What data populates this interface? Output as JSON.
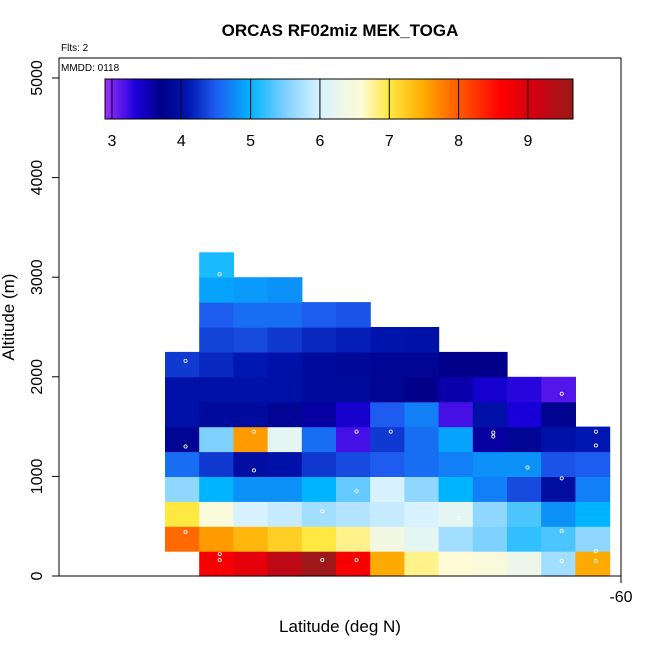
{
  "chart_data": {
    "type": "heatmap",
    "title": "ORCAS RF02miz MEK_TOGA",
    "xlabel": "Latitude (deg N)",
    "ylabel": "Altitude (m)",
    "notes": {
      "flights": "Flts: 2",
      "date": "MMDD: 0118"
    },
    "x_tick_labels": [
      "-60"
    ],
    "y_ticks": [
      0,
      1000,
      2000,
      3000,
      4000,
      5000
    ],
    "y_tick_labels": [
      "0",
      "1000",
      "2000",
      "3000",
      "4000",
      "5000"
    ],
    "ylim": [
      0,
      5200
    ],
    "colorbar": {
      "range": [
        2.9,
        9.65
      ],
      "ticks": [
        3,
        4,
        5,
        6,
        7,
        8,
        9
      ],
      "tick_labels": [
        "3",
        "4",
        "5",
        "6",
        "7",
        "8",
        "9"
      ],
      "stops": [
        {
          "v": 2.9,
          "c": "#9a30ff"
        },
        {
          "v": 3.35,
          "c": "#1a00d8"
        },
        {
          "v": 3.7,
          "c": "#00008a"
        },
        {
          "v": 4.1,
          "c": "#0016b0"
        },
        {
          "v": 4.5,
          "c": "#1e5cf0"
        },
        {
          "v": 5.0,
          "c": "#00b4ff"
        },
        {
          "v": 5.5,
          "c": "#7ed0ff"
        },
        {
          "v": 6.0,
          "c": "#d8f2ff"
        },
        {
          "v": 6.6,
          "c": "#fffbd4"
        },
        {
          "v": 7.0,
          "c": "#ffe840"
        },
        {
          "v": 7.5,
          "c": "#ffaa00"
        },
        {
          "v": 8.0,
          "c": "#ff5a00"
        },
        {
          "v": 8.6,
          "c": "#ff0000"
        },
        {
          "v": 9.1,
          "c": "#d00010"
        },
        {
          "v": 9.65,
          "c": "#9a1a1a"
        }
      ]
    },
    "altitude_bin_edges": [
      0,
      250,
      500,
      750,
      1000,
      1250,
      1500,
      1750,
      2000,
      2250,
      2500,
      2750,
      3000,
      3250
    ],
    "column_count": 13,
    "cells": [
      {
        "col": 1,
        "row": 0,
        "v": 8.7
      },
      {
        "col": 2,
        "row": 0,
        "v": 8.9
      },
      {
        "col": 3,
        "row": 0,
        "v": 9.3
      },
      {
        "col": 4,
        "row": 0,
        "v": 9.6
      },
      {
        "col": 5,
        "row": 0,
        "v": 8.7
      },
      {
        "col": 6,
        "row": 0,
        "v": 7.5
      },
      {
        "col": 7,
        "row": 0,
        "v": 6.8
      },
      {
        "col": 8,
        "row": 0,
        "v": 6.6
      },
      {
        "col": 9,
        "row": 0,
        "v": 6.5
      },
      {
        "col": 10,
        "row": 0,
        "v": 6.3
      },
      {
        "col": 11,
        "row": 0,
        "v": 5.7
      },
      {
        "col": 12,
        "row": 0,
        "v": 7.5
      },
      {
        "col": 0,
        "row": 1,
        "v": 7.9
      },
      {
        "col": 1,
        "row": 1,
        "v": 7.6
      },
      {
        "col": 2,
        "row": 1,
        "v": 7.4
      },
      {
        "col": 3,
        "row": 1,
        "v": 7.2
      },
      {
        "col": 4,
        "row": 1,
        "v": 7.0
      },
      {
        "col": 5,
        "row": 1,
        "v": 6.8
      },
      {
        "col": 6,
        "row": 1,
        "v": 6.4
      },
      {
        "col": 7,
        "row": 1,
        "v": 6.2
      },
      {
        "col": 8,
        "row": 1,
        "v": 5.7
      },
      {
        "col": 9,
        "row": 1,
        "v": 5.5
      },
      {
        "col": 10,
        "row": 1,
        "v": 5.2
      },
      {
        "col": 11,
        "row": 1,
        "v": 5.3
      },
      {
        "col": 12,
        "row": 1,
        "v": 5.6
      },
      {
        "col": 0,
        "row": 2,
        "v": 7.0
      },
      {
        "col": 1,
        "row": 2,
        "v": 6.5
      },
      {
        "col": 2,
        "row": 2,
        "v": 6.0
      },
      {
        "col": 3,
        "row": 2,
        "v": 5.9
      },
      {
        "col": 4,
        "row": 2,
        "v": 5.7
      },
      {
        "col": 5,
        "row": 2,
        "v": 5.8
      },
      {
        "col": 6,
        "row": 2,
        "v": 5.9
      },
      {
        "col": 7,
        "row": 2,
        "v": 6.0
      },
      {
        "col": 8,
        "row": 2,
        "v": 6.2
      },
      {
        "col": 9,
        "row": 2,
        "v": 5.6
      },
      {
        "col": 10,
        "row": 2,
        "v": 5.3
      },
      {
        "col": 11,
        "row": 2,
        "v": 4.8
      },
      {
        "col": 12,
        "row": 2,
        "v": 5.0
      },
      {
        "col": 0,
        "row": 3,
        "v": 5.6
      },
      {
        "col": 1,
        "row": 3,
        "v": 5.0
      },
      {
        "col": 2,
        "row": 3,
        "v": 4.8
      },
      {
        "col": 3,
        "row": 3,
        "v": 4.8
      },
      {
        "col": 4,
        "row": 3,
        "v": 5.0
      },
      {
        "col": 5,
        "row": 3,
        "v": 5.4
      },
      {
        "col": 6,
        "row": 3,
        "v": 6.0
      },
      {
        "col": 7,
        "row": 3,
        "v": 5.6
      },
      {
        "col": 8,
        "row": 3,
        "v": 5.0
      },
      {
        "col": 9,
        "row": 3,
        "v": 4.7
      },
      {
        "col": 10,
        "row": 3,
        "v": 4.4
      },
      {
        "col": 11,
        "row": 3,
        "v": 3.95
      },
      {
        "col": 12,
        "row": 3,
        "v": 4.7
      },
      {
        "col": 0,
        "row": 4,
        "v": 4.6
      },
      {
        "col": 1,
        "row": 4,
        "v": 4.3
      },
      {
        "col": 2,
        "row": 4,
        "v": 3.95
      },
      {
        "col": 3,
        "row": 4,
        "v": 4.0
      },
      {
        "col": 4,
        "row": 4,
        "v": 4.3
      },
      {
        "col": 5,
        "row": 4,
        "v": 4.4
      },
      {
        "col": 6,
        "row": 4,
        "v": 4.5
      },
      {
        "col": 7,
        "row": 4,
        "v": 4.6
      },
      {
        "col": 8,
        "row": 4,
        "v": 4.7
      },
      {
        "col": 9,
        "row": 4,
        "v": 4.8
      },
      {
        "col": 10,
        "row": 4,
        "v": 4.8
      },
      {
        "col": 11,
        "row": 4,
        "v": 4.45
      },
      {
        "col": 12,
        "row": 4,
        "v": 4.5
      },
      {
        "col": 0,
        "row": 5,
        "v": 3.8
      },
      {
        "col": 1,
        "row": 5,
        "v": 5.5
      },
      {
        "col": 2,
        "row": 5,
        "v": 7.6
      },
      {
        "col": 3,
        "row": 5,
        "v": 6.2
      },
      {
        "col": 4,
        "row": 5,
        "v": 4.6
      },
      {
        "col": 5,
        "row": 5,
        "v": 3.2
      },
      {
        "col": 6,
        "row": 5,
        "v": 4.3
      },
      {
        "col": 7,
        "row": 5,
        "v": 4.6
      },
      {
        "col": 8,
        "row": 5,
        "v": 4.9
      },
      {
        "col": 9,
        "row": 5,
        "v": 3.6
      },
      {
        "col": 10,
        "row": 5,
        "v": 3.8
      },
      {
        "col": 11,
        "row": 5,
        "v": 4.0
      },
      {
        "col": 12,
        "row": 5,
        "v": 4.1
      },
      {
        "col": 0,
        "row": 6,
        "v": 4.0
      },
      {
        "col": 1,
        "row": 6,
        "v": 3.9
      },
      {
        "col": 2,
        "row": 6,
        "v": 3.9
      },
      {
        "col": 3,
        "row": 6,
        "v": 3.8
      },
      {
        "col": 4,
        "row": 6,
        "v": 3.6
      },
      {
        "col": 5,
        "row": 6,
        "v": 3.4
      },
      {
        "col": 6,
        "row": 6,
        "v": 4.5
      },
      {
        "col": 7,
        "row": 6,
        "v": 4.7
      },
      {
        "col": 8,
        "row": 6,
        "v": 3.2
      },
      {
        "col": 9,
        "row": 6,
        "v": 4.0
      },
      {
        "col": 10,
        "row": 6,
        "v": 3.35
      },
      {
        "col": 11,
        "row": 6,
        "v": 3.75
      },
      {
        "col": 0,
        "row": 7,
        "v": 4.0
      },
      {
        "col": 1,
        "row": 7,
        "v": 4.0
      },
      {
        "col": 2,
        "row": 7,
        "v": 4.0
      },
      {
        "col": 3,
        "row": 7,
        "v": 4.0
      },
      {
        "col": 4,
        "row": 7,
        "v": 3.9
      },
      {
        "col": 5,
        "row": 7,
        "v": 3.9
      },
      {
        "col": 6,
        "row": 7,
        "v": 3.8
      },
      {
        "col": 7,
        "row": 7,
        "v": 3.7
      },
      {
        "col": 8,
        "row": 7,
        "v": 3.55
      },
      {
        "col": 9,
        "row": 7,
        "v": 3.4
      },
      {
        "col": 10,
        "row": 7,
        "v": 3.3
      },
      {
        "col": 11,
        "row": 7,
        "v": 3.15
      },
      {
        "col": 0,
        "row": 8,
        "v": 4.3
      },
      {
        "col": 1,
        "row": 8,
        "v": 4.2
      },
      {
        "col": 2,
        "row": 8,
        "v": 4.1
      },
      {
        "col": 3,
        "row": 8,
        "v": 4.0
      },
      {
        "col": 4,
        "row": 8,
        "v": 3.9
      },
      {
        "col": 5,
        "row": 8,
        "v": 3.85
      },
      {
        "col": 6,
        "row": 8,
        "v": 3.8
      },
      {
        "col": 7,
        "row": 8,
        "v": 3.8
      },
      {
        "col": 8,
        "row": 8,
        "v": 3.7
      },
      {
        "col": 9,
        "row": 8,
        "v": 3.7
      },
      {
        "col": 1,
        "row": 9,
        "v": 4.35
      },
      {
        "col": 2,
        "row": 9,
        "v": 4.4
      },
      {
        "col": 3,
        "row": 9,
        "v": 4.3
      },
      {
        "col": 4,
        "row": 9,
        "v": 4.2
      },
      {
        "col": 5,
        "row": 9,
        "v": 4.15
      },
      {
        "col": 6,
        "row": 9,
        "v": 4.05
      },
      {
        "col": 7,
        "row": 9,
        "v": 4.0
      },
      {
        "col": 1,
        "row": 10,
        "v": 4.5
      },
      {
        "col": 2,
        "row": 10,
        "v": 4.6
      },
      {
        "col": 3,
        "row": 10,
        "v": 4.6
      },
      {
        "col": 4,
        "row": 10,
        "v": 4.5
      },
      {
        "col": 5,
        "row": 10,
        "v": 4.45
      },
      {
        "col": 1,
        "row": 11,
        "v": 4.9
      },
      {
        "col": 2,
        "row": 11,
        "v": 4.85
      },
      {
        "col": 3,
        "row": 11,
        "v": 4.8
      },
      {
        "col": 1,
        "row": 12,
        "v": 5.1
      }
    ],
    "sample_points": [
      {
        "col": 1,
        "alt": 3030
      },
      {
        "col": 0,
        "alt": 2160
      },
      {
        "col": 11,
        "alt": 1830
      },
      {
        "col": 0,
        "alt": 1300
      },
      {
        "col": 2,
        "alt": 1450
      },
      {
        "col": 5,
        "alt": 1450
      },
      {
        "col": 6,
        "alt": 1450
      },
      {
        "col": 9,
        "alt": 1440
      },
      {
        "col": 12,
        "alt": 1450
      },
      {
        "col": 12,
        "alt": 1310
      },
      {
        "col": 9,
        "alt": 1400
      },
      {
        "col": 2,
        "alt": 1060
      },
      {
        "col": 10,
        "alt": 1090
      },
      {
        "col": 11,
        "alt": 980
      },
      {
        "col": 5,
        "alt": 850
      },
      {
        "col": 4,
        "alt": 650
      },
      {
        "col": 8,
        "alt": 580
      },
      {
        "col": 0,
        "alt": 440
      },
      {
        "col": 11,
        "alt": 450
      },
      {
        "col": 12,
        "alt": 250
      },
      {
        "col": 1,
        "alt": 220
      },
      {
        "col": 1,
        "alt": 160
      },
      {
        "col": 4,
        "alt": 160
      },
      {
        "col": 5,
        "alt": 160
      },
      {
        "col": 11,
        "alt": 150
      },
      {
        "col": 12,
        "alt": 150
      }
    ]
  }
}
